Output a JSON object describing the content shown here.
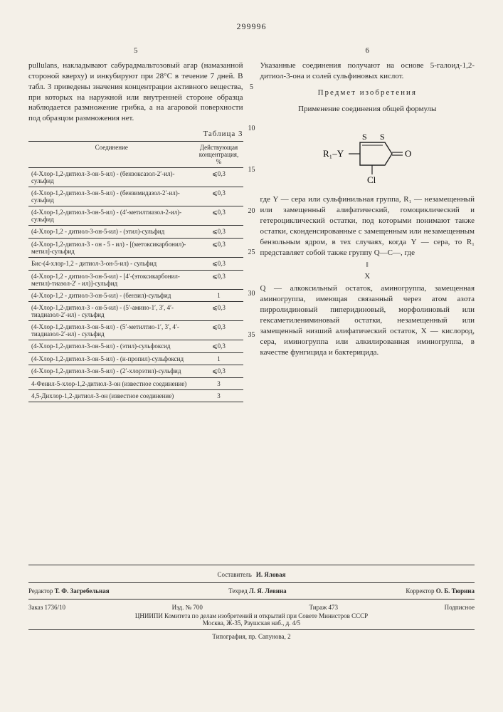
{
  "doc_number": "299996",
  "col_left_num": "5",
  "col_right_num": "6",
  "line_marks": [
    "5",
    "10",
    "15",
    "20",
    "25",
    "30",
    "35"
  ],
  "left_intro": "pullulans, накладывают сабурадмальтозовый агар (намазанной стороной кверху) и инкубируют при 28°C в течение 7 дней. В табл. 3 приведены значения концентрации активного вещества, при которых на наружной или внутренней стороне образца наблюдается размножение грибка, а на агаровой поверхности под образцом размножения нет.",
  "table_label": "Таблица 3",
  "table_head_compound": "Соединение",
  "table_head_conc": "Действующая концентрация, %",
  "table_rows": [
    {
      "c": "(4-Хлор-1,2-дитиол-3-он-5-ил) - (бензоксазол-2′-ил)-сульфид",
      "v": "⩽0,3"
    },
    {
      "c": "(4-Хлор-1,2-дитиол-3-он-5-ил) - (бензимидазол-2′-ил)-сульфид",
      "v": "⩽0,3"
    },
    {
      "c": "(4-Хлор-1,2-дитиол-3-он-5-ил) - (4′-метилтиазол-2-ил)-сульфид",
      "v": "⩽0,3"
    },
    {
      "c": "(4-Хлор-1,2 - дитиол-3-он-5-ил) - (этил)-сульфид",
      "v": "⩽0,3"
    },
    {
      "c": "(4-Хлор-1,2-дитиол-3 - он - 5 - ил) - [(метоксикарбонил)-метил]-сульфид",
      "v": "⩽0,3"
    },
    {
      "c": "Бис-(4-хлор-1,2 - дитиол-3-он-5-ил) - сульфид",
      "v": "⩽0,3"
    },
    {
      "c": "(4-Хлор-1,2 - дитиол-3-он-5-ил) - [4′-(этоксикарбонил-метил)-тиазол-2′ - ил)]-сульфид",
      "v": "⩽0,3"
    },
    {
      "c": "(4-Хлор-1,2 - дитиол-3-он-5-ил) - (бензил)-сульфид",
      "v": "1"
    },
    {
      "c": "(4-Хлор-1,2-дитиол-3 - он-5-ил) - (5′-амино-1′, 3′, 4′-тиадиазол-2′-ил) - сульфид",
      "v": "⩽0,3"
    },
    {
      "c": "(4-Хлор-1,2-дитиол-3-он-5-ил) - (5′-метилтио-1′, 3′, 4′-тиадиазол-2′-ил) - сульфид",
      "v": "⩽0,3"
    },
    {
      "c": "(4-Хлор-1,2-дитиол-3-он-5-ил) - (этил)-сульфоксид",
      "v": "⩽0,3"
    },
    {
      "c": "(4-Хлор-1,2-дитиол-3-он-5-ил) - (н-пропил)-сульфоксид",
      "v": "1"
    },
    {
      "c": "(4-Хлор-1,2-дитиол-3-он-5-ил) - (2′-хлорэтил)-сульфид",
      "v": "⩽0,3"
    },
    {
      "c": "4-Фенил-5-хлор-1,2-дитиол-3-он (известное соединение)",
      "v": "3"
    },
    {
      "c": "4,5-Дихлор-1,2-дитиол-3-он (известное соединение)",
      "v": "3"
    }
  ],
  "right_p1": "Указанные соединения получают на основе 5-галоид-1,2-дитиол-3-она и солей сульфиновых кислот.",
  "subject_title": "Предмет изобретения",
  "right_p2": "Применение соединения общей формулы",
  "chem_labels": {
    "R1Y": "R₁–Y",
    "S1": "S",
    "S2": "S",
    "O": "O",
    "Cl": "Cl"
  },
  "right_p3": "где Y — сера или сульфинильная группа, R₁ — незамещенный или замещенный алифатический, гомоциклический и гетероциклический остатки, под которыми понимают также остатки, сконденсированные с замещенным или незамещенным бензольным ядром, в тех случаях, когда Y — сера, то R₁ представляет собой также группу Q—C—, где",
  "formula_sub": "‖",
  "formula_X": "X",
  "right_p4": "Q — алкоксильный остаток, аминогруппа, замещенная аминогруппа, имеющая связанный через атом азота пирролидиновый пиперидиновый, морфолиновый или гексаметилениминовый остатки, незамещенный или замещенный низший алифатический остаток, X — кислород, сера, иминогруппа или алкилированная иминогруппа, в качестве фунгицида и бактерицида.",
  "footer": {
    "compiler_label": "Составитель",
    "compiler": "И. Яловая",
    "editor_label": "Редактор",
    "editor": "Т. Ф. Загребельная",
    "techred_label": "Техред",
    "techred": "Л. Я. Левина",
    "corrector_label": "Корректор",
    "corrector": "О. Б. Тюрина",
    "order": "Заказ 1736/10",
    "izd": "Изд. № 700",
    "tirazh": "Тираж 473",
    "subscribe": "Подписное",
    "org": "ЦНИИПИ Комитета по делам изобретений и открытий при Совете Министров СССР",
    "addr": "Москва, Ж-35, Раушская наб., д. 4/5",
    "typ": "Типография, пр. Сапунова, 2"
  }
}
